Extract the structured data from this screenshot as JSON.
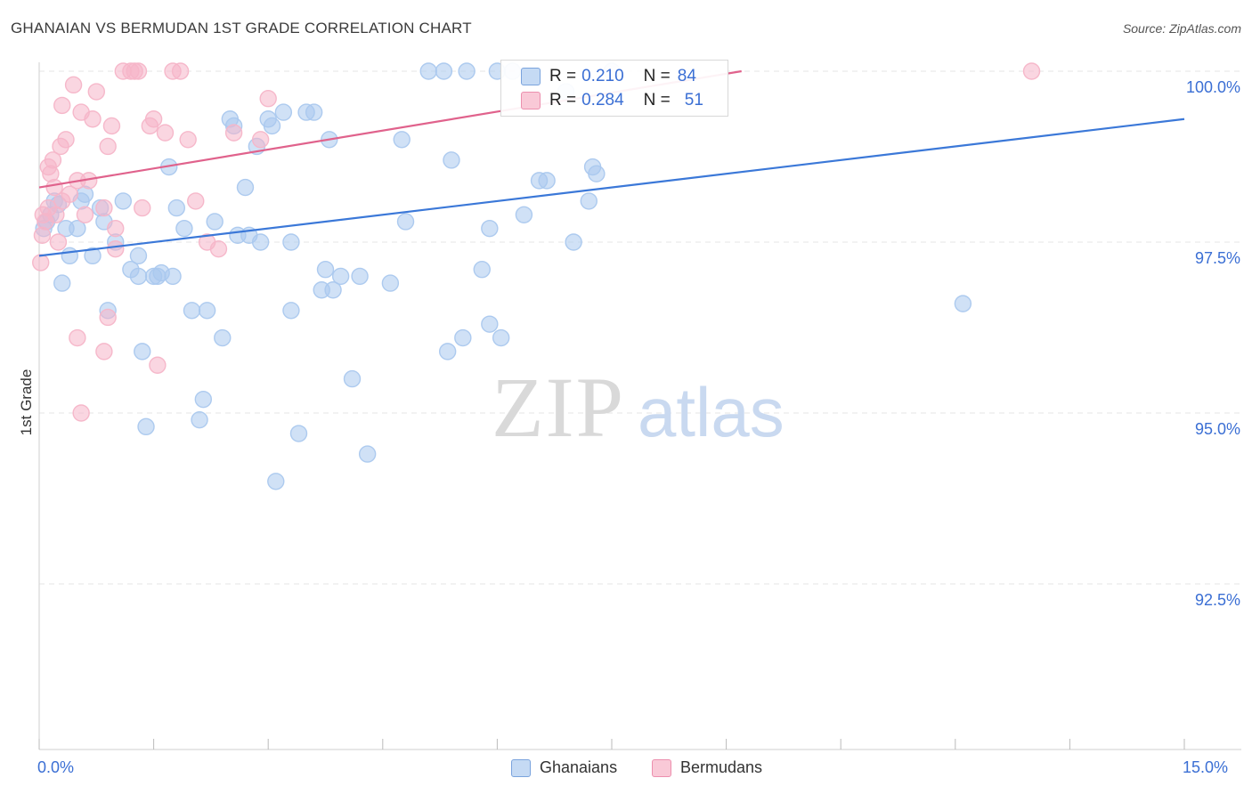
{
  "header": {
    "title": "GHANAIAN VS BERMUDAN 1ST GRADE CORRELATION CHART",
    "source": "Source: ZipAtlas.com"
  },
  "legend": {
    "rows": [
      {
        "r_label": "R = ",
        "r_value": "0.210",
        "n_label": "N = ",
        "n_value": "84",
        "color": "#aac8ee"
      },
      {
        "r_label": "R = ",
        "r_value": "0.284",
        "n_label": "N = ",
        "n_value": "51",
        "color": "#f6b5c8"
      }
    ]
  },
  "bottom_legend": {
    "items": [
      {
        "label": "Ghanaians",
        "color": "#aac8ee"
      },
      {
        "label": "Bermudans",
        "color": "#f6b5c8"
      }
    ]
  },
  "watermark": {
    "zip": "ZIP",
    "atlas": "atlas"
  },
  "chart_data": {
    "type": "scatter",
    "title": "GHANAIAN VS BERMUDAN 1ST GRADE CORRELATION CHART",
    "xlabel": "",
    "ylabel": "1st Grade",
    "xlim": [
      0.0,
      15.0
    ],
    "ylim": [
      90.0,
      100.2
    ],
    "x_tick_labels": [
      {
        "value": 0.0,
        "label": "0.0%"
      },
      {
        "value": 15.0,
        "label": "15.0%"
      }
    ],
    "y_tick_labels": [
      {
        "value": 100.0,
        "label": "100.0%"
      },
      {
        "value": 97.5,
        "label": "97.5%"
      },
      {
        "value": 95.0,
        "label": "95.0%"
      },
      {
        "value": 92.5,
        "label": "92.5%"
      }
    ],
    "grid": true,
    "series": [
      {
        "name": "Ghanaians",
        "color": "#3b78d8",
        "fill": "#aac8ee",
        "trend": {
          "x": [
            0.0,
            15.0
          ],
          "y": [
            97.3,
            99.3
          ]
        },
        "points": [
          [
            0.06,
            97.7
          ],
          [
            0.1,
            97.8
          ],
          [
            0.15,
            97.9
          ],
          [
            0.2,
            98.1
          ],
          [
            0.25,
            98.05
          ],
          [
            0.3,
            96.9
          ],
          [
            0.35,
            97.7
          ],
          [
            0.5,
            97.7
          ],
          [
            0.55,
            98.1
          ],
          [
            0.7,
            97.3
          ],
          [
            0.8,
            98.0
          ],
          [
            0.85,
            97.8
          ],
          [
            0.9,
            96.5
          ],
          [
            1.0,
            97.5
          ],
          [
            1.1,
            98.1
          ],
          [
            1.3,
            97.0
          ],
          [
            1.35,
            95.9
          ],
          [
            1.4,
            94.8
          ],
          [
            1.5,
            97.0
          ],
          [
            1.6,
            97.05
          ],
          [
            1.55,
            97.0
          ],
          [
            1.7,
            98.6
          ],
          [
            1.8,
            98.0
          ],
          [
            1.75,
            97.0
          ],
          [
            1.9,
            97.7
          ],
          [
            2.0,
            96.5
          ],
          [
            2.1,
            94.9
          ],
          [
            2.15,
            95.2
          ],
          [
            2.2,
            96.5
          ],
          [
            2.3,
            97.8
          ],
          [
            2.4,
            96.1
          ],
          [
            2.5,
            99.3
          ],
          [
            2.55,
            99.2
          ],
          [
            2.6,
            97.6
          ],
          [
            2.7,
            98.3
          ],
          [
            2.75,
            97.6
          ],
          [
            2.85,
            98.9
          ],
          [
            2.9,
            97.5
          ],
          [
            3.0,
            99.3
          ],
          [
            3.05,
            99.2
          ],
          [
            3.1,
            94.0
          ],
          [
            3.2,
            99.4
          ],
          [
            3.3,
            97.5
          ],
          [
            3.4,
            94.7
          ],
          [
            3.5,
            99.4
          ],
          [
            3.6,
            99.4
          ],
          [
            3.7,
            96.8
          ],
          [
            3.75,
            97.1
          ],
          [
            3.8,
            99.0
          ],
          [
            3.85,
            96.8
          ],
          [
            3.95,
            97.0
          ],
          [
            4.1,
            95.5
          ],
          [
            4.2,
            97.0
          ],
          [
            4.3,
            94.4
          ],
          [
            4.6,
            96.9
          ],
          [
            4.75,
            99.0
          ],
          [
            4.8,
            97.8
          ],
          [
            5.1,
            100.0
          ],
          [
            5.3,
            100.0
          ],
          [
            5.35,
            95.9
          ],
          [
            5.4,
            98.7
          ],
          [
            5.55,
            96.1
          ],
          [
            5.6,
            100.0
          ],
          [
            5.8,
            97.1
          ],
          [
            5.9,
            97.7
          ],
          [
            6.0,
            100.0
          ],
          [
            6.05,
            96.1
          ],
          [
            6.2,
            100.0
          ],
          [
            6.35,
            97.9
          ],
          [
            6.55,
            98.4
          ],
          [
            6.65,
            98.4
          ],
          [
            6.9,
            99.7
          ],
          [
            7.0,
            97.5
          ],
          [
            7.2,
            98.1
          ],
          [
            7.25,
            98.6
          ],
          [
            7.3,
            98.5
          ],
          [
            7.5,
            100.0
          ],
          [
            12.1,
            96.6
          ],
          [
            1.3,
            97.3
          ],
          [
            0.4,
            97.3
          ],
          [
            0.6,
            98.2
          ],
          [
            1.2,
            97.1
          ],
          [
            3.3,
            96.5
          ],
          [
            5.9,
            96.3
          ]
        ]
      },
      {
        "name": "Bermudans",
        "color": "#e0628c",
        "fill": "#f6b5c8",
        "trend": {
          "x": [
            0.0,
            9.2
          ],
          "y": [
            98.3,
            100.0
          ]
        },
        "points": [
          [
            0.02,
            97.2
          ],
          [
            0.04,
            97.6
          ],
          [
            0.05,
            97.9
          ],
          [
            0.08,
            97.8
          ],
          [
            0.12,
            98.0
          ],
          [
            0.15,
            98.5
          ],
          [
            0.18,
            98.7
          ],
          [
            0.2,
            98.3
          ],
          [
            0.22,
            97.9
          ],
          [
            0.25,
            97.5
          ],
          [
            0.28,
            98.9
          ],
          [
            0.3,
            99.5
          ],
          [
            0.35,
            99.0
          ],
          [
            0.4,
            98.2
          ],
          [
            0.45,
            99.8
          ],
          [
            0.5,
            98.4
          ],
          [
            0.55,
            99.4
          ],
          [
            0.6,
            97.9
          ],
          [
            0.65,
            98.4
          ],
          [
            0.7,
            99.3
          ],
          [
            0.75,
            99.7
          ],
          [
            0.85,
            98.0
          ],
          [
            0.9,
            98.9
          ],
          [
            0.95,
            99.2
          ],
          [
            1.0,
            97.4
          ],
          [
            1.1,
            100.0
          ],
          [
            1.2,
            100.0
          ],
          [
            1.25,
            100.0
          ],
          [
            1.3,
            100.0
          ],
          [
            1.35,
            98.0
          ],
          [
            1.45,
            99.2
          ],
          [
            1.5,
            99.3
          ],
          [
            1.55,
            95.7
          ],
          [
            1.65,
            99.1
          ],
          [
            1.75,
            100.0
          ],
          [
            1.85,
            100.0
          ],
          [
            1.95,
            99.0
          ],
          [
            2.05,
            98.1
          ],
          [
            2.2,
            97.5
          ],
          [
            2.35,
            97.4
          ],
          [
            2.55,
            99.1
          ],
          [
            2.9,
            99.0
          ],
          [
            3.0,
            99.6
          ],
          [
            0.5,
            96.1
          ],
          [
            0.85,
            95.9
          ],
          [
            0.55,
            95.0
          ],
          [
            0.9,
            96.4
          ],
          [
            1.0,
            97.7
          ],
          [
            13.0,
            100.0
          ],
          [
            0.3,
            98.1
          ],
          [
            0.12,
            98.6
          ]
        ]
      }
    ]
  }
}
